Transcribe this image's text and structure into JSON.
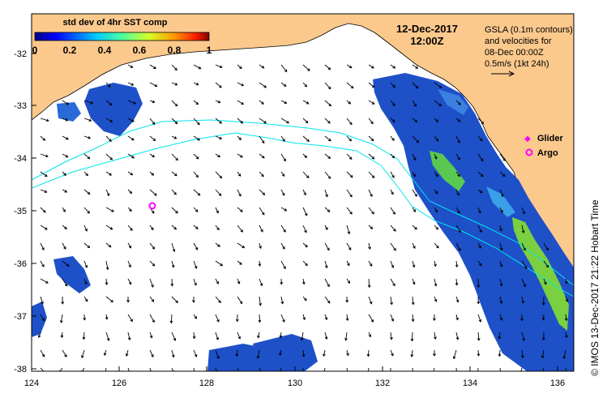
{
  "colorbar": {
    "title": "std dev of 4hr SST comp",
    "ticks": [
      "0",
      "0.2",
      "0.4",
      "0.6",
      "0.8",
      "1"
    ]
  },
  "header": {
    "date": "12-Dec-2017",
    "time": "12:00Z"
  },
  "legend": {
    "gsla_line1": "GSLA (0.1m contours)",
    "gsla_line2": "and velocities for",
    "gsla_line3": "08-Dec 00:00Z",
    "scale_text": "0.5m/s (1kt 24h)",
    "glider_label": "Glider",
    "argo_label": "Argo"
  },
  "axes": {
    "y_ticks": [
      "-32",
      "-33",
      "-34",
      "-35",
      "-36",
      "-37",
      "-38"
    ],
    "x_ticks": [
      "124",
      "126",
      "128",
      "130",
      "132",
      "134",
      "136"
    ]
  },
  "credit": "© IMOS 13-Dec-2017 21:22 Hobart Time",
  "colors": {
    "land": "#fcc98d",
    "ocean": "#ffffff",
    "contour": "#00e5ee",
    "marker": "#ff00ff",
    "data_blue": "#1e50c8",
    "data_green": "#5ac850"
  }
}
